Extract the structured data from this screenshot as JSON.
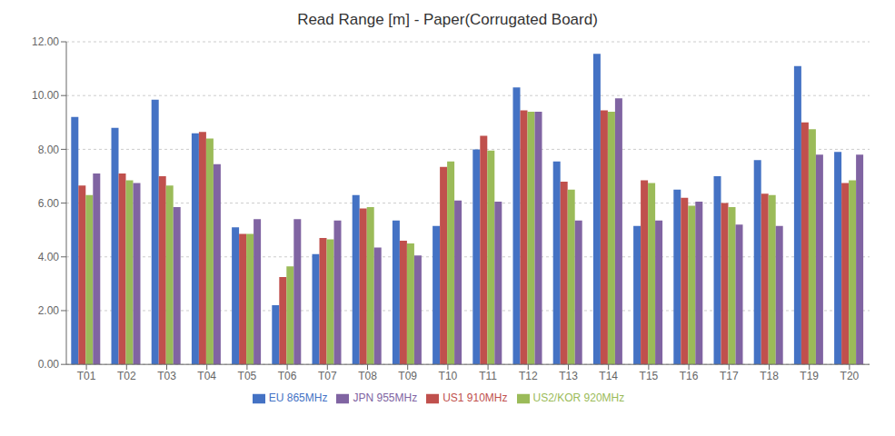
{
  "chart_data": {
    "type": "bar",
    "title": "Read Range [m] - Paper(Corrugated Board)",
    "categories": [
      "T01",
      "T02",
      "T03",
      "T04",
      "T05",
      "T06",
      "T07",
      "T08",
      "T09",
      "T10",
      "T11",
      "T12",
      "T13",
      "T14",
      "T15",
      "T16",
      "T17",
      "T18",
      "T19",
      "T20"
    ],
    "series": [
      {
        "name": "EU 865MHz",
        "color": "#4472C4",
        "values": [
          9.2,
          8.8,
          9.85,
          8.6,
          5.1,
          2.2,
          4.1,
          6.3,
          5.35,
          5.15,
          8.0,
          10.3,
          7.55,
          11.55,
          5.15,
          6.5,
          7.0,
          7.6,
          11.1,
          7.9
        ]
      },
      {
        "name": "US1 910MHz",
        "color": "#C0504D",
        "values": [
          6.65,
          7.1,
          7.0,
          8.65,
          4.85,
          3.25,
          4.7,
          5.8,
          4.6,
          7.35,
          8.5,
          9.45,
          6.8,
          9.45,
          6.85,
          6.2,
          6.0,
          6.35,
          9.0,
          6.75
        ]
      },
      {
        "name": "US2/KOR 920MHz",
        "color": "#9BBB59",
        "values": [
          6.3,
          6.85,
          6.65,
          8.4,
          4.85,
          3.65,
          4.65,
          5.85,
          4.5,
          7.55,
          7.95,
          9.4,
          6.5,
          9.4,
          6.75,
          5.9,
          5.85,
          6.3,
          8.75,
          6.85
        ]
      },
      {
        "name": "JPN 955MHz",
        "color": "#8064A2",
        "values": [
          7.1,
          6.75,
          5.85,
          7.45,
          5.4,
          5.4,
          5.35,
          4.35,
          4.05,
          6.1,
          6.05,
          9.4,
          5.35,
          9.9,
          5.35,
          6.05,
          5.2,
          5.15,
          7.8,
          7.8
        ]
      }
    ],
    "ylim": [
      0,
      12.0
    ],
    "yticks": [
      {
        "value": 0.0,
        "label": "0.00"
      },
      {
        "value": 2.0,
        "label": "2.00"
      },
      {
        "value": 4.0,
        "label": "4.00"
      },
      {
        "value": 6.0,
        "label": "6.00"
      },
      {
        "value": 8.0,
        "label": "8.00"
      },
      {
        "value": 10.0,
        "label": "10.00"
      },
      {
        "value": 12.0,
        "label": "12.00"
      }
    ],
    "grid": true,
    "legend": "bottom"
  }
}
